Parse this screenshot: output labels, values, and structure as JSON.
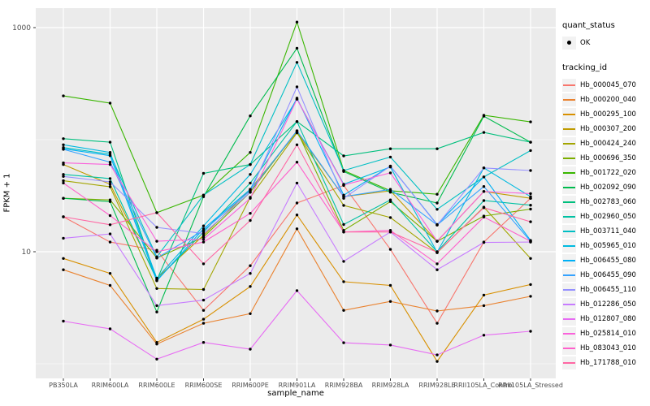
{
  "colors": {
    "panel_bg": "#EBEBEB",
    "grid": "#FFFFFF",
    "tick_text": "#4D4D4D",
    "tick_mark": "#333333",
    "point": "#000000",
    "legend_key_bg": "#F2F2F2"
  },
  "chart_data": {
    "type": "line",
    "xlabel": "sample_name",
    "ylabel": "FPKM + 1",
    "yscale": "log10",
    "ytick_labels": [
      "1000",
      "10"
    ],
    "ytick_values": [
      1000,
      10
    ],
    "yminor_values": [
      1,
      100
    ],
    "ylim": [
      0.79,
      1450
    ],
    "legend_position": "right",
    "categories": [
      "PB350LA",
      "RRIM600LA",
      "RRIM600LE",
      "RRIM600SE",
      "RRIM600PE",
      "RRIM901LA",
      "RRIM928BA",
      "RRIM928LA",
      "RRIM928LE",
      "RRII105LA_Control",
      "RRII105LA_Stressed"
    ],
    "series": [
      {
        "name": "Hb_000045_070",
        "color": "#F8766D",
        "values": [
          20.5,
          12.2,
          10.3,
          3.0,
          7.5,
          27.2,
          39,
          10.5,
          2.3,
          12.2,
          30
        ]
      },
      {
        "name": "Hb_000200_040",
        "color": "#EA8331",
        "values": [
          6.9,
          5.0,
          1.5,
          2.3,
          2.8,
          16.0,
          3.0,
          3.6,
          2.96,
          3.3,
          4.0
        ]
      },
      {
        "name": "Hb_000295_100",
        "color": "#D89000",
        "values": [
          8.7,
          6.4,
          1.55,
          2.5,
          4.9,
          21.3,
          5.4,
          5.0,
          1.05,
          4.1,
          5.1
        ]
      },
      {
        "name": "Hb_000307_200",
        "color": "#C09B00",
        "values": [
          60,
          40,
          5.8,
          14,
          36,
          117,
          31,
          35,
          12.4,
          34.5,
          30
        ]
      },
      {
        "name": "Hb_000424_240",
        "color": "#A3A500",
        "values": [
          43,
          38,
          4.7,
          4.6,
          30.6,
          115,
          25.9,
          20.2,
          9.8,
          25,
          8.7
        ]
      },
      {
        "name": "Hb_000696_350",
        "color": "#7CAE00",
        "values": [
          30,
          29,
          8.8,
          13.5,
          34,
          120,
          15.5,
          28,
          12.4,
          20.8,
          24
        ]
      },
      {
        "name": "Hb_001722_020",
        "color": "#39B600",
        "values": [
          246,
          212,
          22.3,
          32,
          77,
          1120,
          53,
          35,
          32.6,
          165,
          144
        ]
      },
      {
        "name": "Hb_002092_090",
        "color": "#00BB4E",
        "values": [
          30,
          28,
          2.9,
          31,
          163,
          655,
          52,
          34,
          27.2,
          162,
          95
        ]
      },
      {
        "name": "Hb_002783_060",
        "color": "#00BF7D",
        "values": [
          102,
          95,
          5.6,
          50,
          60,
          145,
          71.6,
          83,
          83,
          116,
          95
        ]
      },
      {
        "name": "Hb_002960_050",
        "color": "#00C1A3",
        "values": [
          49,
          45,
          5.6,
          15,
          41,
          145,
          17.5,
          29,
          10,
          28.6,
          26
        ]
      },
      {
        "name": "Hb_003711_040",
        "color": "#00BFC4",
        "values": [
          85,
          74,
          9.0,
          32,
          60,
          490,
          53,
          70,
          23.9,
          46.5,
          80
        ]
      },
      {
        "name": "Hb_005965_010",
        "color": "#00BAE0",
        "values": [
          90,
          77,
          5.8,
          17,
          49,
          230,
          40,
          57,
          9.9,
          56,
          31
        ]
      },
      {
        "name": "Hb_006455_080",
        "color": "#00B0F6",
        "values": [
          83,
          72,
          5.5,
          16,
          36,
          235,
          32,
          58,
          17.5,
          46.5,
          12.6
        ]
      },
      {
        "name": "Hb_006455_090",
        "color": "#35A2FF",
        "values": [
          82,
          63,
          8.8,
          15.5,
          35,
          120,
          31,
          36,
          17.3,
          38.2,
          12.4
        ]
      },
      {
        "name": "Hb_006455_110",
        "color": "#9590FF",
        "values": [
          47,
          42,
          16.5,
          14.5,
          34,
          296,
          30,
          58,
          17.3,
          56,
          53
        ]
      },
      {
        "name": "Hb_012286_050",
        "color": "#C77CFF",
        "values": [
          13.2,
          14.4,
          3.3,
          3.7,
          6.4,
          41,
          8.2,
          15,
          6.9,
          12.1,
          12.2
        ]
      },
      {
        "name": "Hb_012807_080",
        "color": "#E76BF3",
        "values": [
          2.4,
          2.05,
          1.1,
          1.55,
          1.35,
          4.5,
          1.54,
          1.47,
          1.2,
          1.8,
          1.95
        ]
      },
      {
        "name": "Hb_025814_010",
        "color": "#FA62DB",
        "values": [
          62,
          60,
          12.4,
          12.9,
          30,
          230,
          39.4,
          50.5,
          12.4,
          34.5,
          33
        ]
      },
      {
        "name": "Hb_083043_010",
        "color": "#FF61CC",
        "values": [
          41,
          21,
          10.0,
          12.2,
          22,
          63,
          15,
          15.5,
          7.8,
          20.4,
          12.4
        ]
      },
      {
        "name": "Hb_171788_010",
        "color": "#FF67A4",
        "values": [
          20.5,
          17.4,
          22.3,
          7.8,
          19,
          90,
          15,
          15,
          9.9,
          24.7,
          18.5
        ]
      }
    ]
  },
  "legend": {
    "quant_title": "quant_status",
    "quant_items": [
      {
        "label": "OK",
        "symbol": "point"
      }
    ],
    "series_title": "tracking_id"
  },
  "axes": {
    "x_title": "sample_name",
    "y_title": "FPKM + 1"
  }
}
